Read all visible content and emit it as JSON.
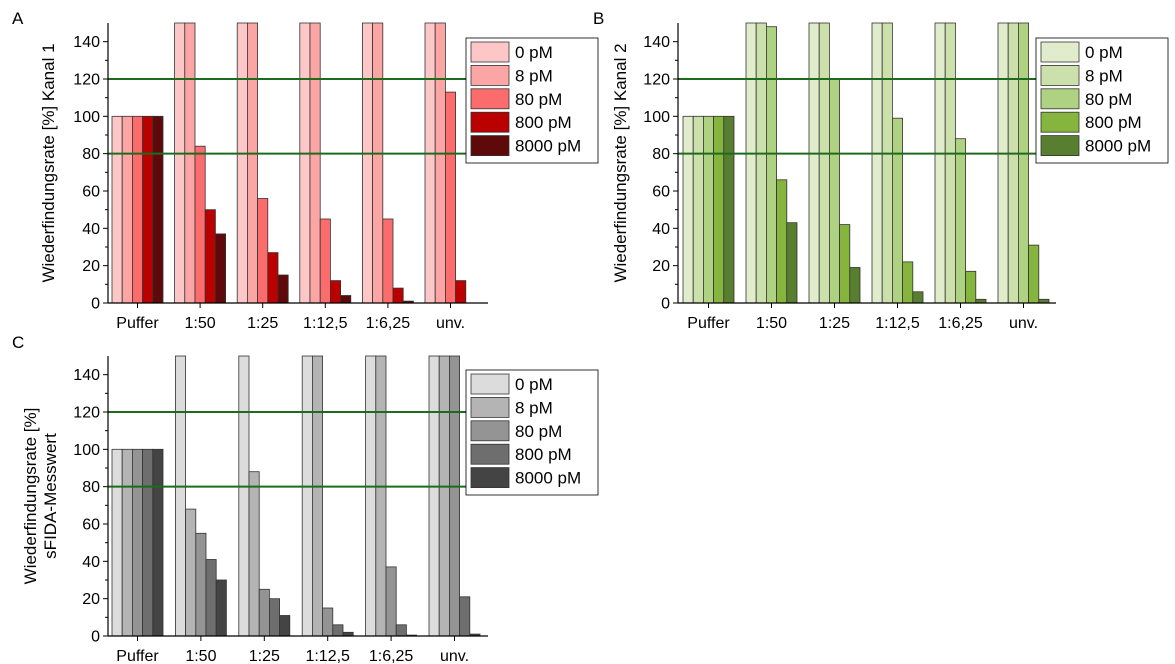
{
  "figure": {
    "categories": [
      "Puffer",
      "1:50",
      "1:25",
      "1:12,5",
      "1:6,25",
      "unv."
    ],
    "legend_labels": [
      "0 pM",
      "8 pM",
      "80 pM",
      "800 pM",
      "8000 pM"
    ],
    "y_ticks": [
      0,
      20,
      40,
      60,
      80,
      100,
      120,
      140
    ],
    "reference_lines": [
      80,
      120
    ]
  },
  "chart_data": [
    {
      "type": "bar",
      "panel_label": "A",
      "ylabel": "Wiederfindungsrate [%] Kanal 1",
      "ylim": [
        0,
        150
      ],
      "categories": [
        "Puffer",
        "1:50",
        "1:25",
        "1:12,5",
        "1:6,25",
        "unv."
      ],
      "reference_lines": [
        80,
        120
      ],
      "legend": "right",
      "colors": [
        "#fdc7c7",
        "#fca5a5",
        "#fb6d6d",
        "#bb0000",
        "#5e0a0a"
      ],
      "series": [
        {
          "name": "0 pM",
          "values": [
            100,
            150,
            150,
            150,
            150,
            150
          ]
        },
        {
          "name": "8 pM",
          "values": [
            100,
            150,
            150,
            150,
            150,
            150
          ]
        },
        {
          "name": "80 pM",
          "values": [
            100,
            84,
            56,
            45,
            45,
            113
          ]
        },
        {
          "name": "800 pM",
          "values": [
            100,
            50,
            27,
            12,
            8,
            12
          ]
        },
        {
          "name": "8000 pM",
          "values": [
            100,
            37,
            15,
            4,
            1,
            0
          ]
        }
      ]
    },
    {
      "type": "bar",
      "panel_label": "B",
      "ylabel": "Wiederfindungsrate [%] Kanal 2",
      "ylim": [
        0,
        150
      ],
      "categories": [
        "Puffer",
        "1:50",
        "1:25",
        "1:12,5",
        "1:6,25",
        "unv."
      ],
      "reference_lines": [
        80,
        120
      ],
      "legend": "right",
      "colors": [
        "#e1eccc",
        "#cbe0aa",
        "#afd282",
        "#86b53e",
        "#587f30"
      ],
      "series": [
        {
          "name": "0 pM",
          "values": [
            100,
            150,
            150,
            150,
            150,
            150
          ]
        },
        {
          "name": "8 pM",
          "values": [
            100,
            150,
            150,
            150,
            150,
            150
          ]
        },
        {
          "name": "80 pM",
          "values": [
            100,
            148,
            120,
            99,
            88,
            150
          ]
        },
        {
          "name": "800 pM",
          "values": [
            100,
            66,
            42,
            22,
            17,
            31
          ]
        },
        {
          "name": "8000 pM",
          "values": [
            100,
            43,
            19,
            6,
            2,
            2
          ]
        }
      ]
    },
    {
      "type": "bar",
      "panel_label": "C",
      "ylabel": "Wiederfindungsrate [%] sFIDA-Messwert",
      "ylabel_lines": [
        "Wiederfindungsrate [%]",
        "sFIDA-Messwert"
      ],
      "ylim": [
        0,
        150
      ],
      "categories": [
        "Puffer",
        "1:50",
        "1:25",
        "1:12,5",
        "1:6,25",
        "unv."
      ],
      "reference_lines": [
        80,
        120
      ],
      "legend": "right",
      "colors": [
        "#dcdcdc",
        "#b4b4b4",
        "#949494",
        "#6e6e6e",
        "#444444"
      ],
      "series": [
        {
          "name": "0 pM",
          "values": [
            100,
            150,
            150,
            150,
            150,
            150
          ]
        },
        {
          "name": "8 pM",
          "values": [
            100,
            68,
            88,
            150,
            150,
            150
          ]
        },
        {
          "name": "80 pM",
          "values": [
            100,
            55,
            25,
            15,
            37,
            150
          ]
        },
        {
          "name": "800 pM",
          "values": [
            100,
            41,
            20,
            6,
            6,
            21
          ]
        },
        {
          "name": "8000 pM",
          "values": [
            100,
            30,
            11,
            2,
            0.5,
            1
          ]
        }
      ]
    }
  ]
}
